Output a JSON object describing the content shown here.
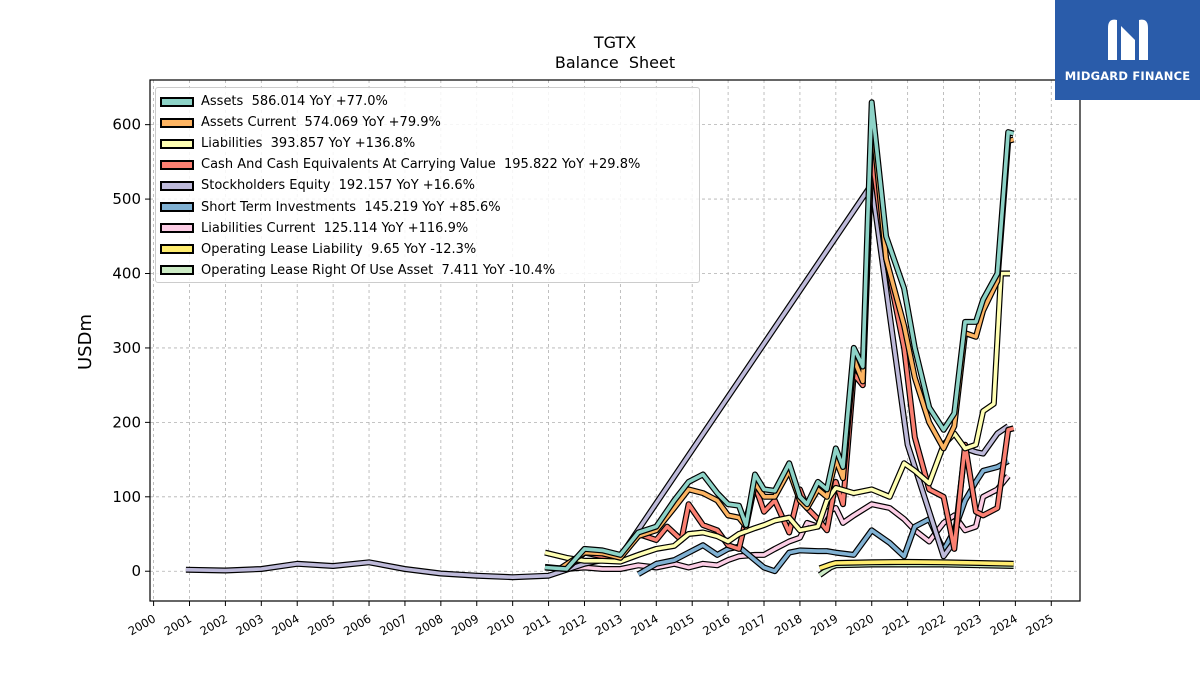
{
  "title": "TGTX",
  "subtitle": "Balance  Sheet",
  "brand": {
    "name": "MIDGARD FINANCE"
  },
  "colors": {
    "Assets": "#8dd3c7",
    "Assets Current": "#fdb462",
    "Liabilities": "#ffffb3",
    "Cash And Cash Equivalents At Carrying Value": "#fb8072",
    "Stockholders Equity": "#bebada",
    "Short Term Investments": "#80b1d3",
    "Liabilities Current": "#fccde5",
    "Operating Lease Liability": "#ffed6f",
    "Operating Lease Right Of Use Asset": "#ccebc5"
  },
  "legend": [
    {
      "label": "Assets  586.014 YoY +77.0%"
    },
    {
      "label": "Assets Current  574.069 YoY +79.9%"
    },
    {
      "label": "Liabilities  393.857 YoY +136.8%"
    },
    {
      "label": "Cash And Cash Equivalents At Carrying Value  195.822 YoY +29.8%"
    },
    {
      "label": "Stockholders Equity  192.157 YoY +16.6%"
    },
    {
      "label": "Short Term Investments  145.219 YoY +85.6%"
    },
    {
      "label": "Liabilities Current  125.114 YoY +116.9%"
    },
    {
      "label": "Operating Lease Liability  9.65 YoY -12.3%"
    },
    {
      "label": "Operating Lease Right Of Use Asset  7.411 YoY -10.4%"
    }
  ],
  "chart_data": {
    "type": "line",
    "title": "TGTX",
    "subtitle": "Balance  Sheet",
    "xlabel": "",
    "ylabel": "USDm",
    "xlim": [
      1999.9,
      2025.8
    ],
    "ylim": [
      -40,
      660
    ],
    "xticks": [
      "2000",
      "2001",
      "2002",
      "2003",
      "2004",
      "2005",
      "2006",
      "2007",
      "2008",
      "2009",
      "2010",
      "2011",
      "2012",
      "2013",
      "2014",
      "2015",
      "2016",
      "2017",
      "2018",
      "2019",
      "2020",
      "2021",
      "2022",
      "2023",
      "2024",
      "2025"
    ],
    "yticks": [
      0,
      100,
      200,
      300,
      400,
      500,
      600
    ],
    "grid": true,
    "legend_position": "upper-left",
    "series": [
      {
        "name": "Assets",
        "points": [
          [
            2010.9,
            5
          ],
          [
            2011.5,
            3
          ],
          [
            2012,
            30
          ],
          [
            2012.5,
            28
          ],
          [
            2013,
            22
          ],
          [
            2013.5,
            52
          ],
          [
            2014,
            60
          ],
          [
            2014.5,
            95
          ],
          [
            2014.9,
            120
          ],
          [
            2015.3,
            130
          ],
          [
            2015.7,
            105
          ],
          [
            2016,
            90
          ],
          [
            2016.3,
            88
          ],
          [
            2016.5,
            62
          ],
          [
            2016.75,
            130
          ],
          [
            2017,
            110
          ],
          [
            2017.3,
            108
          ],
          [
            2017.7,
            145
          ],
          [
            2018,
            100
          ],
          [
            2018.2,
            90
          ],
          [
            2018.5,
            120
          ],
          [
            2018.75,
            110
          ],
          [
            2019,
            165
          ],
          [
            2019.2,
            140
          ],
          [
            2019.5,
            300
          ],
          [
            2019.75,
            275
          ],
          [
            2020,
            630
          ],
          [
            2020.4,
            450
          ],
          [
            2020.9,
            380
          ],
          [
            2021.2,
            300
          ],
          [
            2021.6,
            220
          ],
          [
            2022,
            190
          ],
          [
            2022.3,
            212
          ],
          [
            2022.6,
            335
          ],
          [
            2022.9,
            335
          ],
          [
            2023.1,
            365
          ],
          [
            2023.5,
            400
          ],
          [
            2023.8,
            590
          ],
          [
            2023.95,
            588
          ]
        ]
      },
      {
        "name": "Assets Current",
        "points": [
          [
            2011.3,
            3
          ],
          [
            2012,
            25
          ],
          [
            2012.5,
            24
          ],
          [
            2013,
            18
          ],
          [
            2013.5,
            47
          ],
          [
            2014,
            55
          ],
          [
            2014.5,
            85
          ],
          [
            2014.9,
            110
          ],
          [
            2015.3,
            105
          ],
          [
            2015.7,
            95
          ],
          [
            2016,
            75
          ],
          [
            2016.3,
            72
          ],
          [
            2016.5,
            60
          ],
          [
            2016.75,
            118
          ],
          [
            2017,
            100
          ],
          [
            2017.3,
            100
          ],
          [
            2017.7,
            135
          ],
          [
            2018,
            95
          ],
          [
            2018.2,
            85
          ],
          [
            2018.5,
            110
          ],
          [
            2018.75,
            100
          ],
          [
            2019,
            150
          ],
          [
            2019.2,
            125
          ],
          [
            2019.5,
            285
          ],
          [
            2019.75,
            255
          ],
          [
            2020,
            615
          ],
          [
            2020.4,
            420
          ],
          [
            2020.9,
            330
          ],
          [
            2021.2,
            260
          ],
          [
            2021.6,
            200
          ],
          [
            2022,
            165
          ],
          [
            2022.3,
            195
          ],
          [
            2022.6,
            320
          ],
          [
            2022.9,
            315
          ],
          [
            2023.1,
            350
          ],
          [
            2023.5,
            390
          ],
          [
            2023.8,
            578
          ],
          [
            2023.95,
            580
          ]
        ]
      },
      {
        "name": "Liabilities",
        "points": [
          [
            2010.9,
            25
          ],
          [
            2011.5,
            18
          ],
          [
            2012,
            14
          ],
          [
            2012.5,
            14
          ],
          [
            2013,
            13
          ],
          [
            2013.5,
            22
          ],
          [
            2014,
            30
          ],
          [
            2014.5,
            34
          ],
          [
            2014.9,
            50
          ],
          [
            2015.3,
            52
          ],
          [
            2015.7,
            47
          ],
          [
            2016,
            40
          ],
          [
            2016.3,
            50
          ],
          [
            2016.75,
            58
          ],
          [
            2017,
            62
          ],
          [
            2017.3,
            68
          ],
          [
            2017.7,
            72
          ],
          [
            2018,
            55
          ],
          [
            2018.5,
            60
          ],
          [
            2018.75,
            95
          ],
          [
            2019,
            112
          ],
          [
            2019.5,
            105
          ],
          [
            2020,
            110
          ],
          [
            2020.5,
            100
          ],
          [
            2020.9,
            145
          ],
          [
            2021.2,
            135
          ],
          [
            2021.6,
            118
          ],
          [
            2022,
            170
          ],
          [
            2022.3,
            185
          ],
          [
            2022.6,
            165
          ],
          [
            2022.9,
            170
          ],
          [
            2023.1,
            215
          ],
          [
            2023.4,
            225
          ],
          [
            2023.6,
            400
          ],
          [
            2023.85,
            400
          ]
        ]
      },
      {
        "name": "Cash And Cash Equivalents At Carrying Value",
        "points": [
          [
            2010.9,
            5
          ],
          [
            2011.5,
            3
          ],
          [
            2012,
            25
          ],
          [
            2012.5,
            20
          ],
          [
            2013,
            18
          ],
          [
            2013.5,
            50
          ],
          [
            2014,
            42
          ],
          [
            2014.3,
            60
          ],
          [
            2014.7,
            42
          ],
          [
            2014.9,
            90
          ],
          [
            2015.3,
            62
          ],
          [
            2015.7,
            55
          ],
          [
            2016,
            35
          ],
          [
            2016.3,
            30
          ],
          [
            2016.5,
            70
          ],
          [
            2016.75,
            115
          ],
          [
            2017,
            80
          ],
          [
            2017.3,
            95
          ],
          [
            2017.7,
            52
          ],
          [
            2018,
            110
          ],
          [
            2018.2,
            85
          ],
          [
            2018.5,
            70
          ],
          [
            2018.75,
            55
          ],
          [
            2019,
            120
          ],
          [
            2019.2,
            90
          ],
          [
            2019.5,
            265
          ],
          [
            2019.75,
            250
          ],
          [
            2020,
            560
          ],
          [
            2020.4,
            420
          ],
          [
            2020.9,
            300
          ],
          [
            2021.2,
            180
          ],
          [
            2021.6,
            110
          ],
          [
            2022,
            100
          ],
          [
            2022.3,
            30
          ],
          [
            2022.6,
            170
          ],
          [
            2022.9,
            80
          ],
          [
            2023.1,
            75
          ],
          [
            2023.5,
            85
          ],
          [
            2023.8,
            190
          ],
          [
            2023.95,
            192
          ]
        ]
      },
      {
        "name": "Stockholders Equity",
        "points": [
          [
            2000.9,
            2
          ],
          [
            2002,
            1
          ],
          [
            2003,
            3
          ],
          [
            2004,
            10
          ],
          [
            2005,
            7
          ],
          [
            2006,
            12
          ],
          [
            2007,
            3
          ],
          [
            2008,
            -3
          ],
          [
            2009,
            -6
          ],
          [
            2010,
            -8
          ],
          [
            2011,
            -6
          ],
          [
            2012,
            10
          ],
          [
            2013,
            20
          ],
          [
            2020,
            520
          ],
          [
            2021,
            170
          ],
          [
            2022,
            20
          ],
          [
            2022.3,
            40
          ],
          [
            2022.6,
            165
          ],
          [
            2022.9,
            160
          ],
          [
            2023.1,
            158
          ],
          [
            2023.5,
            185
          ],
          [
            2023.8,
            195
          ]
        ]
      },
      {
        "name": "Short Term Investments",
        "points": [
          [
            2013.5,
            -4
          ],
          [
            2014,
            10
          ],
          [
            2014.5,
            15
          ],
          [
            2014.9,
            25
          ],
          [
            2015.3,
            35
          ],
          [
            2015.7,
            22
          ],
          [
            2016,
            30
          ],
          [
            2016.3,
            33
          ],
          [
            2016.75,
            15
          ],
          [
            2017,
            5
          ],
          [
            2017.3,
            0
          ],
          [
            2017.7,
            25
          ],
          [
            2018,
            28
          ],
          [
            2018.5,
            27
          ],
          [
            2018.75,
            27
          ],
          [
            2019,
            25
          ],
          [
            2019.5,
            22
          ],
          [
            2020,
            55
          ],
          [
            2020.5,
            38
          ],
          [
            2020.9,
            20
          ],
          [
            2021.2,
            60
          ],
          [
            2021.6,
            70
          ],
          [
            2022,
            28
          ],
          [
            2022.3,
            55
          ],
          [
            2022.6,
            95
          ],
          [
            2022.9,
            120
          ],
          [
            2023.1,
            135
          ],
          [
            2023.5,
            140
          ],
          [
            2023.8,
            148
          ]
        ]
      },
      {
        "name": "Liabilities Current",
        "points": [
          [
            2010.9,
            6
          ],
          [
            2011.5,
            3
          ],
          [
            2012,
            5
          ],
          [
            2012.5,
            3
          ],
          [
            2013,
            3
          ],
          [
            2013.5,
            8
          ],
          [
            2014,
            5
          ],
          [
            2014.5,
            10
          ],
          [
            2014.9,
            5
          ],
          [
            2015.3,
            10
          ],
          [
            2015.7,
            8
          ],
          [
            2016,
            15
          ],
          [
            2016.3,
            20
          ],
          [
            2016.75,
            22
          ],
          [
            2017,
            22
          ],
          [
            2017.3,
            30
          ],
          [
            2017.7,
            40
          ],
          [
            2018,
            45
          ],
          [
            2018.2,
            65
          ],
          [
            2018.5,
            60
          ],
          [
            2018.75,
            80
          ],
          [
            2019,
            85
          ],
          [
            2019.2,
            65
          ],
          [
            2019.5,
            75
          ],
          [
            2020,
            90
          ],
          [
            2020.5,
            85
          ],
          [
            2020.9,
            70
          ],
          [
            2021.2,
            55
          ],
          [
            2021.6,
            40
          ],
          [
            2022,
            65
          ],
          [
            2022.3,
            75
          ],
          [
            2022.6,
            55
          ],
          [
            2022.9,
            60
          ],
          [
            2023.1,
            100
          ],
          [
            2023.5,
            110
          ],
          [
            2023.8,
            128
          ]
        ]
      },
      {
        "name": "Operating Lease Liability",
        "points": [
          [
            2018.55,
            4
          ],
          [
            2018.85,
            9
          ],
          [
            2019,
            11
          ],
          [
            2020,
            12
          ],
          [
            2021,
            12.5
          ],
          [
            2022,
            12
          ],
          [
            2023,
            11
          ],
          [
            2023.95,
            10
          ]
        ]
      },
      {
        "name": "Operating Lease Right Of Use Asset",
        "points": [
          [
            2018.55,
            -5
          ],
          [
            2018.85,
            5
          ],
          [
            2019,
            8
          ],
          [
            2020,
            9
          ],
          [
            2021,
            9
          ],
          [
            2022,
            9
          ],
          [
            2023,
            8
          ],
          [
            2023.95,
            7
          ]
        ]
      }
    ]
  }
}
